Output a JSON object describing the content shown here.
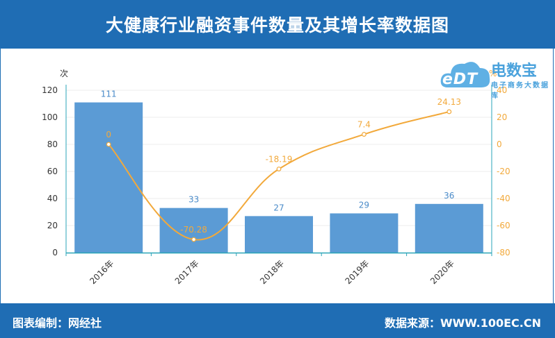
{
  "header": {
    "title": "大健康行业融资事件数量及其增长率数据图"
  },
  "footer": {
    "left": "图表编制：网经社",
    "right": "数据来源：WWW.100EC.CN"
  },
  "logo": {
    "cloud_text": "eDT",
    "brand": "电数宝",
    "brand_sub": "电子商务大数据库"
  },
  "chart_data": {
    "type": "bar",
    "categories": [
      "2016年",
      "2017年",
      "2018年",
      "2019年",
      "2020年"
    ],
    "series": [
      {
        "type": "bar",
        "values": [
          111,
          33,
          27,
          29,
          36
        ],
        "color": "#5b9bd5",
        "axis": "left"
      },
      {
        "type": "line",
        "values": [
          0,
          -70.28,
          -18.19,
          7.4,
          24.13
        ],
        "color": "#f2a93b",
        "axis": "right"
      }
    ],
    "left_axis": {
      "label": "次",
      "min": 0,
      "max": 120,
      "ticks": [
        0,
        20,
        40,
        60,
        80,
        100,
        120
      ]
    },
    "right_axis": {
      "label": "%",
      "min": -80,
      "max": 40,
      "ticks": [
        -80,
        -60,
        -40,
        -20,
        0,
        20,
        40
      ]
    },
    "colors": {
      "label_blue": "#4a8bc9",
      "label_orange": "#f2a93b",
      "axis": "#2aa5b8"
    }
  }
}
